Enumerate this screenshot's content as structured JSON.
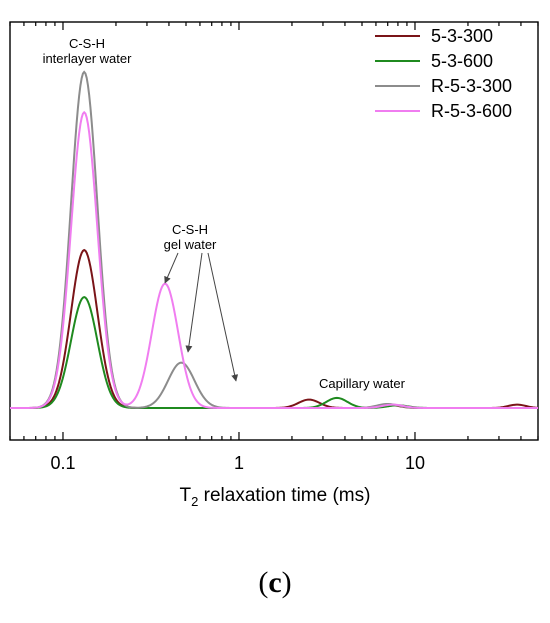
{
  "panel_label": "c",
  "chart_data": {
    "type": "line",
    "x_scale": "log",
    "xlim": [
      0.05,
      50
    ],
    "xlabel": {
      "pre": "T",
      "sub": "2",
      "post": " relaxation time (ms)"
    },
    "x_ticks": [
      {
        "value": 0.1,
        "label": "0.1"
      },
      {
        "value": 1,
        "label": "1"
      },
      {
        "value": 10,
        "label": "10"
      }
    ],
    "ylim": [
      0,
      1.05
    ],
    "legend_position": "top-right",
    "series": [
      {
        "name": "5-3-300",
        "color": "#7a1418",
        "peaks": [
          {
            "center": 0.132,
            "height": 0.47,
            "width": 0.075
          },
          {
            "center": 2.5,
            "height": 0.025,
            "width": 0.06
          },
          {
            "center": 7.0,
            "height": 0.01,
            "width": 0.06
          },
          {
            "center": 38,
            "height": 0.01,
            "width": 0.05
          }
        ]
      },
      {
        "name": "5-3-600",
        "color": "#1f8a1f",
        "peaks": [
          {
            "center": 0.132,
            "height": 0.33,
            "width": 0.075
          },
          {
            "center": 3.6,
            "height": 0.03,
            "width": 0.06
          },
          {
            "center": 8.0,
            "height": 0.008,
            "width": 0.06
          }
        ]
      },
      {
        "name": "R-5-3-300",
        "color": "#8c8c8c",
        "peaks": [
          {
            "center": 0.132,
            "height": 1.0,
            "width": 0.075
          },
          {
            "center": 0.47,
            "height": 0.135,
            "width": 0.075
          },
          {
            "center": 7.0,
            "height": 0.012,
            "width": 0.06
          }
        ]
      },
      {
        "name": "R-5-3-600",
        "color": "#f07df0",
        "peaks": [
          {
            "center": 0.132,
            "height": 0.88,
            "width": 0.075
          },
          {
            "center": 0.38,
            "height": 0.37,
            "width": 0.075
          },
          {
            "center": 7.5,
            "height": 0.01,
            "width": 0.06
          }
        ]
      }
    ],
    "annotations": {
      "interlayer": [
        "C-S-H",
        "interlayer water"
      ],
      "gel": [
        "C-S-H",
        "gel water"
      ],
      "capillary": "Capillary water"
    }
  }
}
